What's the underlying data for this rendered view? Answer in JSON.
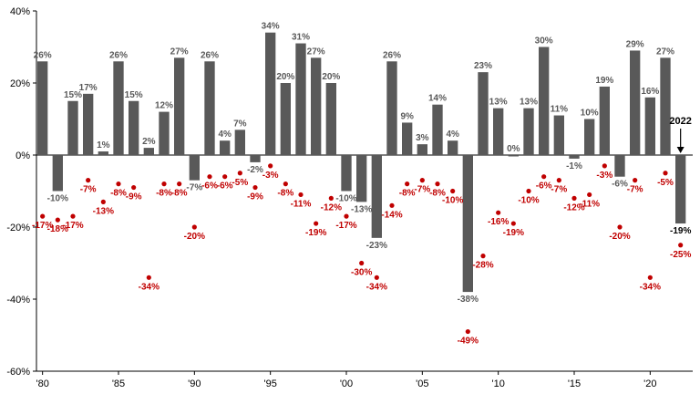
{
  "chart_data": {
    "type": "bar",
    "title": "",
    "xlabel": "",
    "ylabel": "",
    "ylim": [
      -60,
      40
    ],
    "y_ticks": [
      40,
      20,
      0,
      -20,
      -40,
      -60
    ],
    "y_tick_labels": [
      "40%",
      "20%",
      "0%",
      "-20%",
      "-40%",
      "-60%"
    ],
    "x_ticks": [
      1980,
      1985,
      1990,
      1995,
      2000,
      2005,
      2010,
      2015,
      2020
    ],
    "x_tick_labels": [
      "'80",
      "'85",
      "'90",
      "'95",
      "'00",
      "'05",
      "'10",
      "'15",
      "'20"
    ],
    "grid": false,
    "legend": "none",
    "years": [
      1980,
      1981,
      1982,
      1983,
      1984,
      1985,
      1986,
      1987,
      1988,
      1989,
      1990,
      1991,
      1992,
      1993,
      1994,
      1995,
      1996,
      1997,
      1998,
      1999,
      2000,
      2001,
      2002,
      2003,
      2004,
      2005,
      2006,
      2007,
      2008,
      2009,
      2010,
      2011,
      2012,
      2013,
      2014,
      2015,
      2016,
      2017,
      2018,
      2019,
      2020,
      2021,
      2022
    ],
    "series": [
      {
        "type": "bar",
        "color": "#595959",
        "values": [
          26,
          -10,
          15,
          17,
          1,
          26,
          15,
          2,
          12,
          27,
          -7,
          26,
          4,
          7,
          -2,
          34,
          20,
          31,
          27,
          20,
          -10,
          -13,
          -23,
          26,
          9,
          3,
          14,
          4,
          -38,
          23,
          13,
          0,
          13,
          30,
          11,
          -1,
          10,
          19,
          -6,
          29,
          16,
          27,
          -19
        ],
        "labels": [
          "26%",
          "-10%",
          "15%",
          "17%",
          "1%",
          "26%",
          "15%",
          "2%",
          "12%",
          "27%",
          "-7%",
          "26%",
          "4%",
          "7%",
          "-2%",
          "34%",
          "20%",
          "31%",
          "27%",
          "20%",
          "-10%",
          "-13%",
          "-23%",
          "26%",
          "9%",
          "3%",
          "14%",
          "4%",
          "-38%",
          "23%",
          "13%",
          "0%",
          "13%",
          "30%",
          "11%",
          "-1%",
          "10%",
          "19%",
          "-6%",
          "29%",
          "16%",
          "27%",
          "-19%"
        ]
      },
      {
        "type": "scatter",
        "color": "#c00000",
        "values": [
          -17,
          -18,
          -17,
          -7,
          -13,
          -8,
          -9,
          -34,
          -8,
          -8,
          -20,
          -6,
          -6,
          -5,
          -9,
          -3,
          -8,
          -11,
          -19,
          -12,
          -17,
          -30,
          -34,
          -14,
          -8,
          -7,
          -8,
          -10,
          -49,
          -28,
          -16,
          -19,
          -10,
          -6,
          -7,
          -12,
          -11,
          -3,
          -20,
          -7,
          -34,
          -5,
          -25
        ],
        "labels": [
          "-17%",
          "-18%",
          "-17%",
          "-7%",
          "-13%",
          "-8%",
          "-9%",
          "-34%",
          "-8%",
          "-8%",
          "-20%",
          "-6%",
          "-6%",
          "-5%",
          "-9%",
          "-3%",
          "-8%",
          "-11%",
          "-19%",
          "-12%",
          "-17%",
          "-30%",
          "-34%",
          "-14%",
          "-8%",
          "-7%",
          "-8%",
          "-10%",
          "-49%",
          "-28%",
          "-16%",
          "-19%",
          "-10%",
          "-6%",
          "-7%",
          "-12%",
          "-11%",
          "-3%",
          "-20%",
          "-7%",
          "-34%",
          "-5%",
          "-25%"
        ]
      }
    ],
    "annotation": {
      "text": "2022",
      "year": 2022
    }
  }
}
